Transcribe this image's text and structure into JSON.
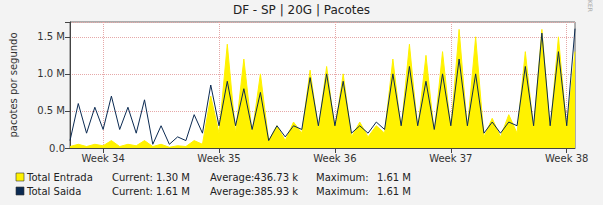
{
  "chart_data": {
    "type": "line",
    "title": "DF - SP | 20G | Pacotes",
    "y_label": "pacotes por segundo",
    "watermark": "RRDTOOL / TOBI OETIKER",
    "x": [
      0,
      0.5,
      1,
      1.5,
      2,
      2.5,
      3,
      3.5,
      4,
      4.5,
      5,
      5.5,
      6,
      6.5,
      7,
      7.5,
      8,
      8.5,
      9,
      9.5,
      10,
      10.5,
      11,
      11.5,
      12,
      12.5,
      13,
      13.5,
      14,
      14.5,
      15,
      15.5,
      16,
      16.5,
      17,
      17.5,
      18,
      18.5,
      19,
      19.5,
      20,
      20.5,
      21,
      21.5,
      22,
      22.5,
      23,
      23.5,
      24,
      24.5,
      25,
      25.5,
      26,
      26.5,
      27,
      27.5,
      28,
      28.5,
      29,
      29.5,
      30,
      30.5
    ],
    "xlim": [
      0,
      30.5
    ],
    "xticks": [
      {
        "value": 2,
        "label": "Week 34"
      },
      {
        "value": 9,
        "label": "Week 35"
      },
      {
        "value": 16,
        "label": "Week 36"
      },
      {
        "value": 23,
        "label": "Week 37"
      },
      {
        "value": 30,
        "label": "Week 38"
      }
    ],
    "ylim": [
      0,
      1700000
    ],
    "yticks": [
      {
        "value": 0,
        "label": "0.0"
      },
      {
        "value": 500000,
        "label": "0.5 M"
      },
      {
        "value": 1000000,
        "label": "1.0 M"
      },
      {
        "value": 1500000,
        "label": "1.5 M"
      }
    ],
    "grid": true,
    "legend": "bottom",
    "series": [
      {
        "name": "Total Entrada",
        "type": "area",
        "color": "#fff200",
        "values": [
          20000,
          50000,
          20000,
          50000,
          30000,
          100000,
          20000,
          50000,
          30000,
          100000,
          20000,
          50000,
          10000,
          30000,
          20000,
          100000,
          50000,
          700000,
          200000,
          1400000,
          200000,
          1200000,
          200000,
          1000000,
          100000,
          300000,
          100000,
          350000,
          200000,
          1050000,
          250000,
          1100000,
          250000,
          1000000,
          150000,
          350000,
          150000,
          300000,
          200000,
          1200000,
          250000,
          1400000,
          250000,
          1250000,
          200000,
          1300000,
          250000,
          1600000,
          250000,
          1500000,
          150000,
          400000,
          150000,
          450000,
          200000,
          1300000,
          250000,
          1600000,
          250000,
          1500000,
          250000,
          1300000
        ],
        "stats": [
          [
            "Current:",
            "1.30 M"
          ],
          [
            "Average:",
            "436.73 k"
          ],
          [
            "Maximum:",
            "1.61 M"
          ]
        ]
      },
      {
        "name": "Total Saida",
        "type": "line",
        "color": "#0b2a52",
        "values": [
          100000,
          600000,
          200000,
          550000,
          250000,
          700000,
          250000,
          550000,
          200000,
          650000,
          50000,
          300000,
          50000,
          150000,
          100000,
          450000,
          200000,
          850000,
          300000,
          900000,
          300000,
          800000,
          250000,
          750000,
          100000,
          300000,
          150000,
          300000,
          250000,
          950000,
          300000,
          1000000,
          300000,
          900000,
          200000,
          300000,
          200000,
          350000,
          250000,
          1000000,
          300000,
          1100000,
          300000,
          900000,
          250000,
          1000000,
          300000,
          1200000,
          300000,
          1000000,
          200000,
          350000,
          200000,
          350000,
          300000,
          1100000,
          300000,
          1550000,
          300000,
          1300000,
          300000,
          1610000
        ],
        "stats": [
          [
            "Current:",
            "1.61 M"
          ],
          [
            "Average:",
            "385.93 k"
          ],
          [
            "Maximum:",
            "1.61 M"
          ]
        ]
      }
    ]
  }
}
